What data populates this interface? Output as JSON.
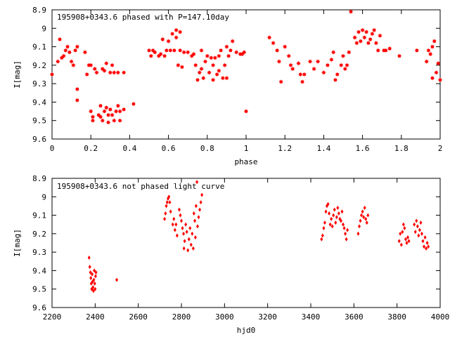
{
  "chart_data": [
    {
      "type": "scatter",
      "title": "195908+0343.6 phased with P=147.10day",
      "xlabel": "phase",
      "ylabel": "I[mag]",
      "xlim": [
        0,
        2
      ],
      "ylim": [
        8.9,
        9.6
      ],
      "y_inverted": true,
      "xticks": [
        "0",
        "0.2",
        "0.4",
        "0.6",
        "0.8",
        "1",
        "1.2",
        "1.4",
        "1.6",
        "1.8",
        "2"
      ],
      "yticks": [
        "8.9",
        "9",
        "9.1",
        "9.2",
        "9.3",
        "9.4",
        "9.5",
        "9.6"
      ],
      "marker": "star",
      "color": "#ff0000",
      "points": [
        [
          0.0,
          9.25
        ],
        [
          0.03,
          9.18
        ],
        [
          0.04,
          9.06
        ],
        [
          0.05,
          9.16
        ],
        [
          0.06,
          9.15
        ],
        [
          0.07,
          9.12
        ],
        [
          0.08,
          9.1
        ],
        [
          0.09,
          9.13
        ],
        [
          0.1,
          9.18
        ],
        [
          0.11,
          9.2
        ],
        [
          0.12,
          9.12
        ],
        [
          0.13,
          9.1
        ],
        [
          0.13,
          9.33
        ],
        [
          0.13,
          9.39
        ],
        [
          0.17,
          9.13
        ],
        [
          0.18,
          9.25
        ],
        [
          0.19,
          9.2
        ],
        [
          0.2,
          9.2
        ],
        [
          0.2,
          9.45
        ],
        [
          0.21,
          9.48
        ],
        [
          0.21,
          9.5
        ],
        [
          0.22,
          9.22
        ],
        [
          0.23,
          9.24
        ],
        [
          0.24,
          9.47
        ],
        [
          0.25,
          9.42
        ],
        [
          0.25,
          9.48
        ],
        [
          0.26,
          9.22
        ],
        [
          0.26,
          9.5
        ],
        [
          0.27,
          9.23
        ],
        [
          0.27,
          9.45
        ],
        [
          0.28,
          9.19
        ],
        [
          0.28,
          9.43
        ],
        [
          0.29,
          9.47
        ],
        [
          0.29,
          9.51
        ],
        [
          0.3,
          9.24
        ],
        [
          0.3,
          9.44
        ],
        [
          0.31,
          9.2
        ],
        [
          0.31,
          9.47
        ],
        [
          0.32,
          9.24
        ],
        [
          0.32,
          9.5
        ],
        [
          0.33,
          9.45
        ],
        [
          0.34,
          9.24
        ],
        [
          0.34,
          9.42
        ],
        [
          0.35,
          9.5
        ],
        [
          0.35,
          9.45
        ],
        [
          0.37,
          9.44
        ],
        [
          0.37,
          9.24
        ],
        [
          0.42,
          9.41
        ],
        [
          0.5,
          9.12
        ],
        [
          0.51,
          9.15
        ],
        [
          0.52,
          9.12
        ],
        [
          0.53,
          9.13
        ],
        [
          0.55,
          9.15
        ],
        [
          0.56,
          9.14
        ],
        [
          0.57,
          9.06
        ],
        [
          0.58,
          9.15
        ],
        [
          0.59,
          9.12
        ],
        [
          0.6,
          9.07
        ],
        [
          0.61,
          9.12
        ],
        [
          0.62,
          9.03
        ],
        [
          0.63,
          9.12
        ],
        [
          0.64,
          9.01
        ],
        [
          0.64,
          9.05
        ],
        [
          0.65,
          9.2
        ],
        [
          0.66,
          9.12
        ],
        [
          0.66,
          9.02
        ],
        [
          0.67,
          9.21
        ],
        [
          0.68,
          9.13
        ],
        [
          0.7,
          9.13
        ],
        [
          0.72,
          9.15
        ],
        [
          0.73,
          9.14
        ],
        [
          0.74,
          9.2
        ],
        [
          0.75,
          9.28
        ],
        [
          0.76,
          9.24
        ],
        [
          0.77,
          9.22
        ],
        [
          0.77,
          9.12
        ],
        [
          0.78,
          9.27
        ],
        [
          0.79,
          9.18
        ],
        [
          0.8,
          9.15
        ],
        [
          0.81,
          9.24
        ],
        [
          0.82,
          9.16
        ],
        [
          0.83,
          9.2
        ],
        [
          0.83,
          9.28
        ],
        [
          0.84,
          9.16
        ],
        [
          0.85,
          9.25
        ],
        [
          0.86,
          9.15
        ],
        [
          0.86,
          9.23
        ],
        [
          0.87,
          9.12
        ],
        [
          0.88,
          9.27
        ],
        [
          0.89,
          9.2
        ],
        [
          0.9,
          9.1
        ],
        [
          0.9,
          9.27
        ],
        [
          0.91,
          9.15
        ],
        [
          0.92,
          9.12
        ],
        [
          0.93,
          9.07
        ],
        [
          0.95,
          9.13
        ],
        [
          0.97,
          9.14
        ],
        [
          0.98,
          9.14
        ],
        [
          0.99,
          9.13
        ],
        [
          1.0,
          9.45
        ],
        [
          1.12,
          9.05
        ],
        [
          1.14,
          9.08
        ],
        [
          1.16,
          9.12
        ],
        [
          1.17,
          9.18
        ],
        [
          1.18,
          9.29
        ],
        [
          1.2,
          9.1
        ],
        [
          1.22,
          9.15
        ],
        [
          1.23,
          9.2
        ],
        [
          1.24,
          9.22
        ],
        [
          1.27,
          9.19
        ],
        [
          1.28,
          9.25
        ],
        [
          1.29,
          9.29
        ],
        [
          1.3,
          9.25
        ],
        [
          1.33,
          9.18
        ],
        [
          1.35,
          9.22
        ],
        [
          1.37,
          9.18
        ],
        [
          1.4,
          9.24
        ],
        [
          1.42,
          9.2
        ],
        [
          1.44,
          9.17
        ],
        [
          1.45,
          9.13
        ],
        [
          1.46,
          9.28
        ],
        [
          1.47,
          9.25
        ],
        [
          1.49,
          9.2
        ],
        [
          1.5,
          9.15
        ],
        [
          1.51,
          9.22
        ],
        [
          1.52,
          9.2
        ],
        [
          1.53,
          9.13
        ],
        [
          1.54,
          8.91
        ],
        [
          1.56,
          9.05
        ],
        [
          1.57,
          9.08
        ],
        [
          1.58,
          9.02
        ],
        [
          1.59,
          9.07
        ],
        [
          1.6,
          9.01
        ],
        [
          1.61,
          9.05
        ],
        [
          1.62,
          9.02
        ],
        [
          1.63,
          9.08
        ],
        [
          1.64,
          9.06
        ],
        [
          1.65,
          9.03
        ],
        [
          1.66,
          9.01
        ],
        [
          1.67,
          9.08
        ],
        [
          1.68,
          9.12
        ],
        [
          1.69,
          9.04
        ],
        [
          1.71,
          9.12
        ],
        [
          1.72,
          9.12
        ],
        [
          1.74,
          9.11
        ],
        [
          1.79,
          9.15
        ],
        [
          1.88,
          9.12
        ],
        [
          1.93,
          9.18
        ],
        [
          1.94,
          9.12
        ],
        [
          1.95,
          9.14
        ],
        [
          1.96,
          9.1
        ],
        [
          1.96,
          9.27
        ],
        [
          1.97,
          9.07
        ],
        [
          1.98,
          9.24
        ],
        [
          1.99,
          9.19
        ],
        [
          2.0,
          9.28
        ]
      ]
    },
    {
      "type": "scatter",
      "title": "195908+0343.6 not phased light curve",
      "xlabel": "hjd0",
      "ylabel": "I[mag]",
      "xlim": [
        2200,
        4000
      ],
      "ylim": [
        8.9,
        9.6
      ],
      "y_inverted": true,
      "xticks": [
        "2200",
        "2400",
        "2600",
        "2800",
        "3000",
        "3200",
        "3400",
        "3600",
        "3800",
        "4000"
      ],
      "yticks": [
        "8.9",
        "9",
        "9.1",
        "9.2",
        "9.3",
        "9.4",
        "9.5",
        "9.6"
      ],
      "marker": "diamond",
      "color": "#ff0000",
      "points": [
        [
          2372,
          9.33
        ],
        [
          2375,
          9.38
        ],
        [
          2378,
          9.41
        ],
        [
          2380,
          9.44
        ],
        [
          2382,
          9.47
        ],
        [
          2384,
          9.5
        ],
        [
          2386,
          9.42
        ],
        [
          2388,
          9.46
        ],
        [
          2390,
          9.49
        ],
        [
          2392,
          9.51
        ],
        [
          2394,
          9.45
        ],
        [
          2396,
          9.4
        ],
        [
          2398,
          9.47
        ],
        [
          2400,
          9.5
        ],
        [
          2402,
          9.43
        ],
        [
          2404,
          9.41
        ],
        [
          2500,
          9.45
        ],
        [
          2722,
          9.12
        ],
        [
          2726,
          9.09
        ],
        [
          2730,
          9.05
        ],
        [
          2734,
          9.03
        ],
        [
          2738,
          9.01
        ],
        [
          2742,
          9.0
        ],
        [
          2746,
          9.03
        ],
        [
          2750,
          9.08
        ],
        [
          2760,
          9.15
        ],
        [
          2765,
          9.12
        ],
        [
          2770,
          9.18
        ],
        [
          2775,
          9.15
        ],
        [
          2780,
          9.21
        ],
        [
          2790,
          9.07
        ],
        [
          2795,
          9.1
        ],
        [
          2800,
          9.13
        ],
        [
          2805,
          9.17
        ],
        [
          2810,
          9.2
        ],
        [
          2812,
          9.28
        ],
        [
          2815,
          9.24
        ],
        [
          2820,
          9.15
        ],
        [
          2825,
          9.19
        ],
        [
          2830,
          9.29
        ],
        [
          2835,
          9.23
        ],
        [
          2840,
          9.17
        ],
        [
          2845,
          9.26
        ],
        [
          2850,
          9.2
        ],
        [
          2855,
          9.28
        ],
        [
          2858,
          9.09
        ],
        [
          2862,
          9.13
        ],
        [
          2865,
          9.22
        ],
        [
          2868,
          9.05
        ],
        [
          2872,
          8.92
        ],
        [
          2875,
          9.16
        ],
        [
          2880,
          9.11
        ],
        [
          2885,
          9.07
        ],
        [
          2890,
          9.03
        ],
        [
          2895,
          8.99
        ],
        [
          3450,
          9.23
        ],
        [
          3455,
          9.21
        ],
        [
          3460,
          9.17
        ],
        [
          3465,
          9.14
        ],
        [
          3470,
          9.08
        ],
        [
          3475,
          9.05
        ],
        [
          3480,
          9.04
        ],
        [
          3485,
          9.09
        ],
        [
          3490,
          9.15
        ],
        [
          3495,
          9.12
        ],
        [
          3500,
          9.16
        ],
        [
          3505,
          9.1
        ],
        [
          3510,
          9.07
        ],
        [
          3515,
          9.14
        ],
        [
          3520,
          9.11
        ],
        [
          3525,
          9.06
        ],
        [
          3530,
          9.09
        ],
        [
          3535,
          9.12
        ],
        [
          3540,
          9.13
        ],
        [
          3545,
          9.08
        ],
        [
          3550,
          9.15
        ],
        [
          3555,
          9.17
        ],
        [
          3560,
          9.2
        ],
        [
          3565,
          9.23
        ],
        [
          3570,
          9.18
        ],
        [
          3620,
          9.2
        ],
        [
          3625,
          9.16
        ],
        [
          3630,
          9.13
        ],
        [
          3635,
          9.1
        ],
        [
          3640,
          9.08
        ],
        [
          3645,
          9.11
        ],
        [
          3650,
          9.06
        ],
        [
          3655,
          9.12
        ],
        [
          3660,
          9.14
        ],
        [
          3665,
          9.1
        ],
        [
          3810,
          9.24
        ],
        [
          3815,
          9.2
        ],
        [
          3820,
          9.26
        ],
        [
          3825,
          9.19
        ],
        [
          3830,
          9.15
        ],
        [
          3835,
          9.17
        ],
        [
          3840,
          9.23
        ],
        [
          3845,
          9.25
        ],
        [
          3850,
          9.22
        ],
        [
          3855,
          9.24
        ],
        [
          3880,
          9.15
        ],
        [
          3885,
          9.19
        ],
        [
          3890,
          9.13
        ],
        [
          3895,
          9.16
        ],
        [
          3900,
          9.21
        ],
        [
          3905,
          9.18
        ],
        [
          3910,
          9.14
        ],
        [
          3915,
          9.2
        ],
        [
          3920,
          9.24
        ],
        [
          3925,
          9.27
        ],
        [
          3930,
          9.22
        ],
        [
          3935,
          9.28
        ],
        [
          3940,
          9.25
        ],
        [
          3945,
          9.27
        ]
      ]
    }
  ]
}
